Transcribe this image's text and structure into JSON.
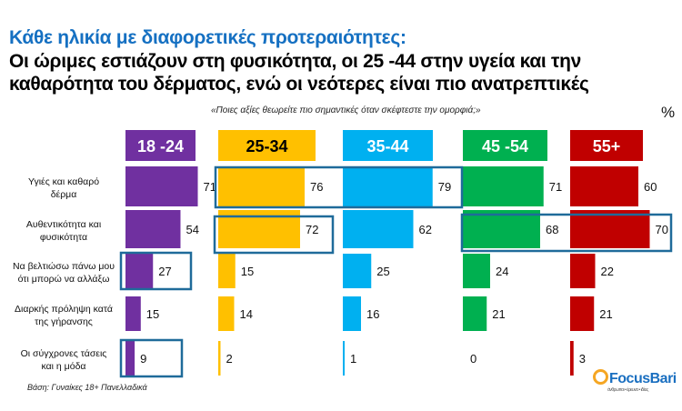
{
  "title": "Κάθε ηλικία με διαφορετικές προτεραιότητες:",
  "subtitle_line1": "Οι ώριμες εστιάζουν στη φυσικότητα, οι 25 -44 στην υγεία και την",
  "subtitle_line2": "καθαρότητα του δέρματος, ενώ οι νεότερες είναι πιο ανατρεπτικές",
  "question": "«Ποιες  αξίες θεωρείτε πιο σημαντικές όταν σκέφτεστε την ομορφιά;»",
  "unit": "%",
  "base": "Βάση: Γυναίκες 18+ Πανελλαδικά",
  "logo": {
    "name": "FocusBari",
    "tagline": "άνθρωποι • έρευνα • ιδέες"
  },
  "chart_data": {
    "type": "bar",
    "orientation": "horizontal",
    "categories": [
      [
        "Υγιές και καθαρό",
        "δέρμα"
      ],
      [
        "Αυθεντικότητα και",
        "φυσικότητα"
      ],
      [
        "Να βελτιώσω πάνω μου",
        "ότι μπορώ να αλλάξω"
      ],
      [
        "Διαρκής πρόληψη κατά",
        "της γήρανσης"
      ],
      [
        "Οι σύγχρονες τάσεις",
        "και η μόδα"
      ]
    ],
    "series": [
      {
        "name": "18 -24",
        "color": "#7030a0",
        "values": [
          71,
          54,
          27,
          15,
          9
        ]
      },
      {
        "name": "25-34",
        "color": "#ffc000",
        "values": [
          76,
          72,
          15,
          14,
          2
        ]
      },
      {
        "name": "35-44",
        "color": "#00b0f0",
        "values": [
          79,
          62,
          25,
          16,
          1
        ]
      },
      {
        "name": "45 -54",
        "color": "#00b050",
        "values": [
          71,
          68,
          24,
          21,
          0
        ]
      },
      {
        "name": "55+",
        "color": "#c00000",
        "values": [
          60,
          70,
          22,
          21,
          3
        ]
      }
    ],
    "highlight_color": "#1f6b9a",
    "xlim": [
      0,
      100
    ]
  }
}
